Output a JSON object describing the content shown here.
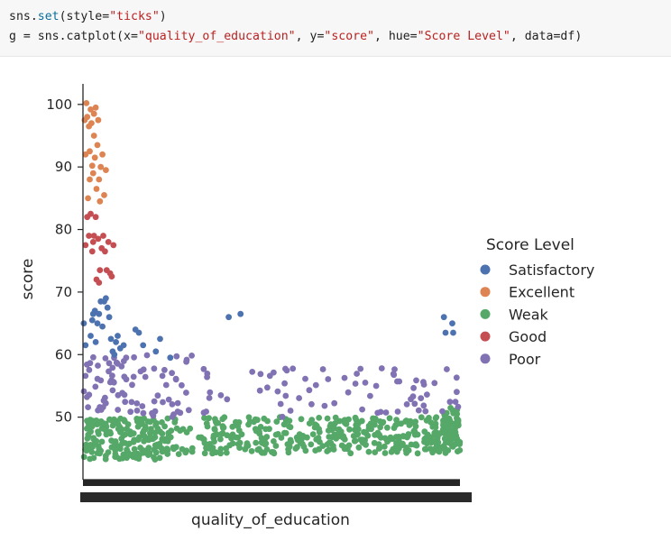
{
  "code": {
    "line1": {
      "obj": "sns.",
      "fn": "set",
      "open": "(",
      "arg": "style=",
      "str": "\"ticks\"",
      "close": ")"
    },
    "line2": {
      "prefix": "g = sns.catplot",
      "open": "(",
      "x_kw": "x=",
      "x_val": "\"quality_of_education\"",
      "sep1": ", ",
      "y_kw": "y=",
      "y_val": "\"score\"",
      "sep2": ", ",
      "hue_kw": "hue=",
      "hue_val": "\"Score Level\"",
      "sep3": ", ",
      "data_kw": "data=df",
      "close": ")"
    }
  },
  "chart_data": {
    "type": "scatter",
    "xlabel": "quality_of_education",
    "ylabel": "score",
    "yticks": [
      50,
      60,
      70,
      80,
      90,
      100
    ],
    "ylim": [
      40,
      103
    ],
    "legend_title": "Score Level",
    "legend_position": "right",
    "grid": false,
    "series": [
      {
        "name": "Satisfactory",
        "color": "#4c72b0",
        "points": [
          [
            0.1,
            65
          ],
          [
            0.3,
            61.5
          ],
          [
            0.9,
            63
          ],
          [
            1.1,
            65.5
          ],
          [
            1.2,
            66.5
          ],
          [
            1.4,
            67
          ],
          [
            1.5,
            62
          ],
          [
            1.7,
            65
          ],
          [
            1.9,
            66.5
          ],
          [
            2.1,
            68.5
          ],
          [
            2.3,
            64.5
          ],
          [
            2.5,
            68.5
          ],
          [
            2.7,
            69
          ],
          [
            2.9,
            67.5
          ],
          [
            3.1,
            66
          ],
          [
            3.3,
            62.5
          ],
          [
            3.5,
            60.5
          ],
          [
            3.7,
            60
          ],
          [
            3.9,
            62
          ],
          [
            4.1,
            63
          ],
          [
            4.4,
            61
          ],
          [
            4.8,
            61.5
          ],
          [
            6.2,
            64
          ],
          [
            6.6,
            63.5
          ],
          [
            7.1,
            61.5
          ],
          [
            8.6,
            60.5
          ],
          [
            9.1,
            62.5
          ],
          [
            10.3,
            59.5
          ],
          [
            17.2,
            66
          ],
          [
            18.6,
            66.5
          ],
          [
            42.6,
            66
          ],
          [
            42.8,
            63.5
          ],
          [
            43.6,
            65
          ],
          [
            43.7,
            63.5
          ]
        ]
      },
      {
        "name": "Excellent",
        "color": "#dd8452",
        "points": [
          [
            0.2,
            97.5
          ],
          [
            0.4,
            100.2
          ],
          [
            0.5,
            98
          ],
          [
            0.7,
            96.5
          ],
          [
            0.8,
            92.5
          ],
          [
            0.9,
            99.2
          ],
          [
            1.0,
            97
          ],
          [
            1.1,
            90.2
          ],
          [
            1.2,
            89
          ],
          [
            1.3,
            98.5
          ],
          [
            1.4,
            91.5
          ],
          [
            1.5,
            99.5
          ],
          [
            1.6,
            86.5
          ],
          [
            1.7,
            93.5
          ],
          [
            1.8,
            97.5
          ],
          [
            1.9,
            88
          ],
          [
            2.0,
            84.5
          ],
          [
            2.1,
            90
          ],
          [
            2.3,
            92
          ],
          [
            2.5,
            85.5
          ],
          [
            2.7,
            89.5
          ],
          [
            0.3,
            92
          ],
          [
            0.6,
            85
          ],
          [
            0.8,
            88
          ],
          [
            1.3,
            95
          ]
        ]
      },
      {
        "name": "Good",
        "color": "#c44e52",
        "points": [
          [
            0.3,
            77.5
          ],
          [
            0.5,
            82
          ],
          [
            0.7,
            79
          ],
          [
            0.9,
            82.5
          ],
          [
            1.1,
            76.5
          ],
          [
            1.3,
            79
          ],
          [
            1.5,
            82
          ],
          [
            1.6,
            72
          ],
          [
            1.8,
            78.5
          ],
          [
            1.9,
            71.5
          ],
          [
            2.0,
            73.5
          ],
          [
            2.2,
            77
          ],
          [
            2.4,
            79
          ],
          [
            2.6,
            76.5
          ],
          [
            2.8,
            73.5
          ],
          [
            3.0,
            78
          ],
          [
            3.2,
            73
          ],
          [
            3.4,
            72.5
          ],
          [
            3.6,
            77.5
          ],
          [
            1.2,
            78
          ]
        ]
      },
      {
        "name": "Poor",
        "color": "#8172b3"
      },
      {
        "name": "Weak",
        "color": "#55a868"
      }
    ]
  },
  "legend_order": [
    "Satisfactory",
    "Excellent",
    "Weak",
    "Good",
    "Poor"
  ]
}
